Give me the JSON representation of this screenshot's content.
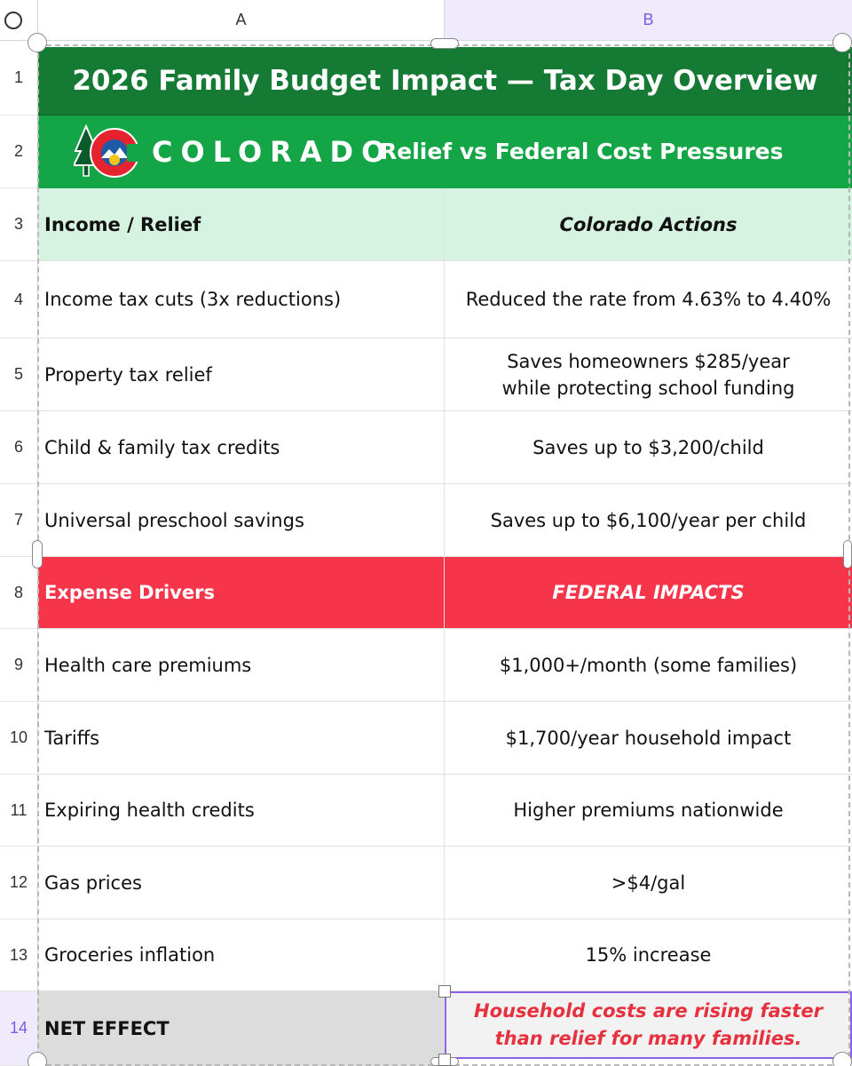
{
  "columns": {
    "a": "A",
    "b": "B"
  },
  "row_numbers": [
    "1",
    "2",
    "3",
    "4",
    "5",
    "6",
    "7",
    "8",
    "9",
    "10",
    "11",
    "12",
    "13",
    "14"
  ],
  "title": "2026 Family Budget Impact — Tax Day Overview",
  "logo": {
    "wordmark": "COLORADO",
    "subtitle": "Relief vs Federal Cost Pressures"
  },
  "relief_header": {
    "a": "Income / Relief",
    "b": "Colorado Actions"
  },
  "relief_rows": [
    {
      "a": "Income tax cuts (3x reductions)",
      "b": "Reduced the rate from 4.63% to 4.40%"
    },
    {
      "a": "Property tax relief",
      "b": "Saves homeowners $285/year while protecting school funding"
    },
    {
      "a": "Child & family tax credits",
      "b": "Saves up to $3,200/child"
    },
    {
      "a": "Universal preschool savings",
      "b": "Saves up to $6,100/year per child"
    }
  ],
  "expense_header": {
    "a": "Expense Drivers",
    "b": "FEDERAL IMPACTS"
  },
  "expense_rows": [
    {
      "a": "Health care premiums",
      "b": "$1,000+/month (some families)"
    },
    {
      "a": "Tariffs",
      "b": "$1,700/year household impact"
    },
    {
      "a": "Expiring health credits",
      "b": "Higher premiums nationwide"
    },
    {
      "a": "Gas prices",
      "b": ">$4/gal"
    },
    {
      "a": "Groceries inflation",
      "b": "15% increase"
    }
  ],
  "net_effect": {
    "a": "NET EFFECT",
    "b": "Household costs are rising faster than relief for many families."
  },
  "colors": {
    "title_bg": "#157a34",
    "logo_bg": "#14a547",
    "relief_bg": "#d6f2e0",
    "expense_bg": "#f7354a",
    "net_text": "#e5323e",
    "selection": "#8a63e8"
  }
}
